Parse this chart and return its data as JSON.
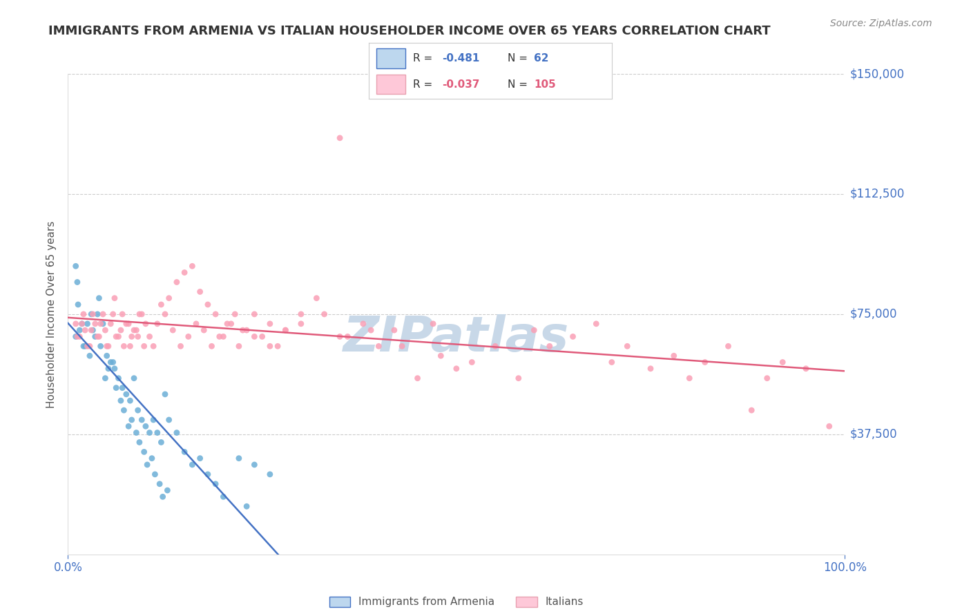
{
  "title": "IMMIGRANTS FROM ARMENIA VS ITALIAN HOUSEHOLDER INCOME OVER 65 YEARS CORRELATION CHART",
  "source": "Source: ZipAtlas.com",
  "xlabel": "",
  "ylabel": "Householder Income Over 65 years",
  "xlim": [
    0,
    100
  ],
  "ylim": [
    0,
    150000
  ],
  "yticks": [
    0,
    37500,
    75000,
    112500,
    150000
  ],
  "ytick_labels": [
    "",
    "$37,500",
    "$75,000",
    "$112,500",
    "$150,000"
  ],
  "xtick_labels": [
    "0.0%",
    "100.0%"
  ],
  "blue_R": -0.481,
  "blue_N": 62,
  "pink_R": -0.037,
  "pink_N": 105,
  "blue_color": "#6baed6",
  "pink_color": "#fa9fb5",
  "blue_fill": "#bdd7ee",
  "pink_fill": "#fec8d8",
  "blue_line_color": "#4472c4",
  "pink_line_color": "#e05a7a",
  "axis_color": "#4472c4",
  "title_color": "#333333",
  "watermark_color": "#c8d8e8",
  "background_color": "#ffffff",
  "plot_bg_color": "#ffffff",
  "legend_label_blue": "Immigrants from Armenia",
  "legend_label_pink": "Italians",
  "blue_scatter_x": [
    1.2,
    1.5,
    2.0,
    2.5,
    3.0,
    3.5,
    4.0,
    4.5,
    5.0,
    5.5,
    6.0,
    6.5,
    7.0,
    7.5,
    8.0,
    8.5,
    9.0,
    9.5,
    10.0,
    10.5,
    11.0,
    11.5,
    12.0,
    12.5,
    13.0,
    14.0,
    15.0,
    16.0,
    17.0,
    18.0,
    19.0,
    20.0,
    22.0,
    24.0,
    26.0,
    1.0,
    1.0,
    1.3,
    1.8,
    2.2,
    2.8,
    3.2,
    3.8,
    4.2,
    4.8,
    5.2,
    5.8,
    6.2,
    6.8,
    7.2,
    7.8,
    8.2,
    8.8,
    9.2,
    9.8,
    10.2,
    10.8,
    11.2,
    11.8,
    12.2,
    12.8,
    23.0
  ],
  "blue_scatter_y": [
    85000,
    70000,
    65000,
    72000,
    75000,
    68000,
    80000,
    72000,
    62000,
    60000,
    58000,
    55000,
    52000,
    50000,
    48000,
    55000,
    45000,
    42000,
    40000,
    38000,
    42000,
    38000,
    35000,
    50000,
    42000,
    38000,
    32000,
    28000,
    30000,
    25000,
    22000,
    18000,
    30000,
    28000,
    25000,
    90000,
    68000,
    78000,
    72000,
    65000,
    62000,
    70000,
    75000,
    65000,
    55000,
    58000,
    60000,
    52000,
    48000,
    45000,
    40000,
    42000,
    38000,
    35000,
    32000,
    28000,
    30000,
    25000,
    22000,
    18000,
    20000,
    15000
  ],
  "pink_scatter_x": [
    1.0,
    1.5,
    2.0,
    2.5,
    3.0,
    3.5,
    4.0,
    4.5,
    5.0,
    5.5,
    6.0,
    6.5,
    7.0,
    7.5,
    8.0,
    8.5,
    9.0,
    9.5,
    10.0,
    11.0,
    12.0,
    13.0,
    14.0,
    15.0,
    16.0,
    17.0,
    18.0,
    19.0,
    20.0,
    21.0,
    22.0,
    23.0,
    24.0,
    25.0,
    26.0,
    27.0,
    28.0,
    30.0,
    32.0,
    35.0,
    38.0,
    40.0,
    42.0,
    45.0,
    48.0,
    50.0,
    52.0,
    55.0,
    58.0,
    60.0,
    62.0,
    65.0,
    68.0,
    70.0,
    72.0,
    75.0,
    78.0,
    80.0,
    82.0,
    85.0,
    88.0,
    90.0,
    92.0,
    95.0,
    98.0,
    1.2,
    1.8,
    2.2,
    2.8,
    3.2,
    3.8,
    4.2,
    4.8,
    5.2,
    5.8,
    6.2,
    6.8,
    7.2,
    7.8,
    8.2,
    8.8,
    9.2,
    9.8,
    10.5,
    11.5,
    12.5,
    13.5,
    14.5,
    15.5,
    16.5,
    17.5,
    18.5,
    19.5,
    20.5,
    21.5,
    22.5,
    24.0,
    26.0,
    28.0,
    30.0,
    33.0,
    36.0,
    39.0,
    43.0,
    47.0
  ],
  "pink_scatter_y": [
    72000,
    68000,
    75000,
    65000,
    70000,
    72000,
    68000,
    75000,
    65000,
    72000,
    80000,
    68000,
    75000,
    72000,
    65000,
    70000,
    68000,
    75000,
    72000,
    65000,
    78000,
    80000,
    85000,
    88000,
    90000,
    82000,
    78000,
    75000,
    68000,
    72000,
    65000,
    70000,
    75000,
    68000,
    72000,
    65000,
    70000,
    75000,
    80000,
    68000,
    72000,
    65000,
    70000,
    55000,
    62000,
    58000,
    60000,
    65000,
    55000,
    70000,
    65000,
    68000,
    72000,
    60000,
    65000,
    58000,
    62000,
    55000,
    60000,
    65000,
    45000,
    55000,
    60000,
    58000,
    40000,
    68000,
    72000,
    70000,
    65000,
    75000,
    68000,
    72000,
    70000,
    65000,
    75000,
    68000,
    70000,
    65000,
    72000,
    68000,
    70000,
    75000,
    65000,
    68000,
    72000,
    75000,
    70000,
    65000,
    68000,
    72000,
    70000,
    65000,
    68000,
    72000,
    75000,
    70000,
    68000,
    65000,
    70000,
    72000,
    75000,
    68000,
    70000,
    65000,
    72000
  ],
  "pink_outlier_x": 35.0,
  "pink_outlier_y": 130000
}
